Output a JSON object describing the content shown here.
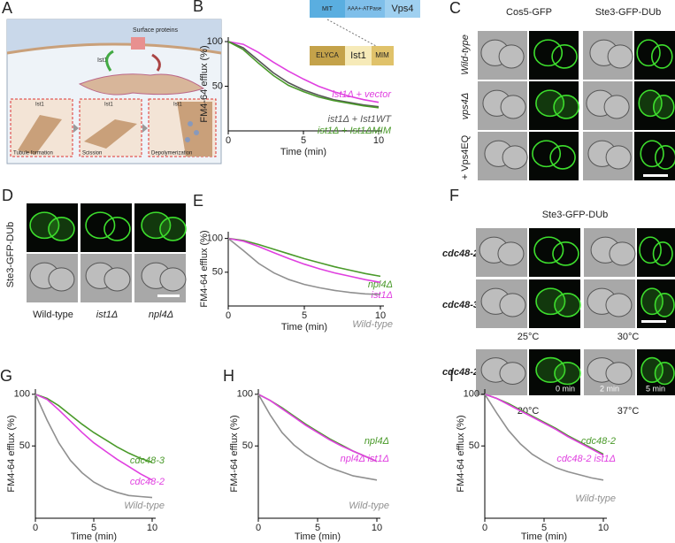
{
  "panel_a": {
    "label": "A",
    "surface": "Surface proteins",
    "ist1": "Ist1",
    "steps": [
      {
        "protein": "Ist1",
        "caption": "Tubule formation"
      },
      {
        "protein": "Ist1",
        "caption": "Scission"
      },
      {
        "protein": "Ist1",
        "caption": "Depolymerization"
      }
    ]
  },
  "domains": {
    "vps4": [
      "MIT",
      "AAA+-ATPase",
      "Vps4"
    ],
    "ist1": [
      "ELYCA",
      "Ist1",
      "MIM"
    ]
  },
  "panel_c": {
    "label": "C",
    "columns": [
      "Cos5-GFP",
      "Ste3-GFP-DUb"
    ],
    "rows": [
      "Wild-type",
      "vps4Δ",
      "+ Vps4EQ"
    ]
  },
  "panel_d": {
    "label": "D",
    "side": "Ste3-GFP-DUb",
    "columns": [
      "Wild-type",
      "ist1Δ",
      "npl4Δ"
    ]
  },
  "panel_f": {
    "label": "F",
    "header": "Ste3-GFP-DUb",
    "rows": [
      "cdc48-2",
      "cdc48-3",
      "cdc48-2"
    ],
    "temps": [
      "25°C",
      "30°C",
      "20°C",
      "37°C"
    ],
    "times": [
      "0 min",
      "2 min",
      "5 min"
    ]
  },
  "chart_data": [
    {
      "panel": "B",
      "type": "line",
      "xlabel": "Time (min)",
      "ylabel": "FM4-64 efflux (%)",
      "x": [
        0,
        1,
        2,
        3,
        4,
        5,
        6,
        7,
        8,
        9,
        10
      ],
      "xlim": [
        0,
        10
      ],
      "ylim": [
        0,
        105
      ],
      "xticks": [
        0,
        5,
        10
      ],
      "yticks": [
        50,
        100
      ],
      "series": [
        {
          "name": "ist1Δ + vector",
          "color": "#e040e0",
          "values": [
            100,
            97,
            88,
            77,
            67,
            58,
            50,
            44,
            39,
            35,
            32
          ]
        },
        {
          "name": "ist1Δ + Ist1WT",
          "color": "#555555",
          "values": [
            100,
            93,
            79,
            65,
            54,
            46,
            40,
            35,
            32,
            29,
            27
          ]
        },
        {
          "name": "ist1Δ + Ist1ΔMIM",
          "color": "#4a9a2a",
          "values": [
            100,
            91,
            76,
            62,
            51,
            44,
            38,
            34,
            31,
            28,
            26
          ]
        }
      ]
    },
    {
      "panel": "E",
      "type": "line",
      "xlabel": "Time (min)",
      "ylabel": "FM4-64 efflux (%)",
      "x": [
        0,
        1,
        2,
        3,
        4,
        5,
        6,
        7,
        8,
        9,
        10
      ],
      "xlim": [
        0,
        10
      ],
      "ylim": [
        0,
        110
      ],
      "xticks": [
        0,
        5,
        10
      ],
      "yticks": [
        50,
        100
      ],
      "series": [
        {
          "name": "npl4Δ",
          "color": "#4a9a2a",
          "values": [
            100,
            97,
            91,
            84,
            77,
            70,
            64,
            58,
            53,
            48,
            44
          ]
        },
        {
          "name": "ist1Δ",
          "color": "#e040e0",
          "values": [
            100,
            96,
            88,
            79,
            70,
            62,
            55,
            49,
            44,
            39,
            35
          ]
        },
        {
          "name": "Wild-type",
          "color": "#909090",
          "values": [
            100,
            82,
            63,
            49,
            39,
            32,
            27,
            23,
            20,
            18,
            17
          ]
        }
      ]
    },
    {
      "panel": "G",
      "type": "line",
      "xlabel": "Time (min)",
      "ylabel": "FM4-64 efflux (%)",
      "x": [
        0,
        1,
        2,
        3,
        4,
        5,
        6,
        7,
        8,
        9,
        10
      ],
      "xlim": [
        0,
        10
      ],
      "ylim": [
        -20,
        105
      ],
      "xticks": [
        0,
        5,
        10
      ],
      "yticks": [
        50,
        100
      ],
      "series": [
        {
          "name": "cdc48-3",
          "color": "#4a9a2a",
          "values": [
            100,
            96,
            89,
            80,
            71,
            63,
            56,
            49,
            43,
            38,
            34
          ]
        },
        {
          "name": "cdc48-2",
          "color": "#e040e0",
          "values": [
            100,
            95,
            85,
            74,
            63,
            53,
            45,
            37,
            30,
            23,
            17
          ]
        },
        {
          "name": "Wild-type",
          "color": "#909090",
          "values": [
            100,
            75,
            53,
            36,
            24,
            15,
            9,
            5,
            2,
            1,
            0
          ]
        }
      ]
    },
    {
      "panel": "H",
      "type": "line",
      "xlabel": "Time (min)",
      "ylabel": "FM4-64 efflux (%)",
      "x": [
        0,
        1,
        2,
        3,
        4,
        5,
        6,
        7,
        8,
        9,
        10
      ],
      "xlim": [
        0,
        10
      ],
      "ylim": [
        -20,
        105
      ],
      "xticks": [
        0,
        5,
        10
      ],
      "yticks": [
        50,
        100
      ],
      "series": [
        {
          "name": "npl4Δ",
          "color": "#4a9a2a",
          "values": [
            100,
            94,
            87,
            79,
            71,
            64,
            57,
            51,
            45,
            40,
            35
          ]
        },
        {
          "name": "npl4Δ ist1Δ",
          "color": "#e040e0",
          "values": [
            100,
            94,
            86,
            78,
            70,
            63,
            56,
            50,
            45,
            40,
            35
          ]
        },
        {
          "name": "Wild-type",
          "color": "#909090",
          "values": [
            100,
            80,
            63,
            51,
            42,
            35,
            29,
            25,
            21,
            19,
            17
          ]
        }
      ]
    },
    {
      "panel": "I",
      "type": "line",
      "xlabel": "Time (min)",
      "ylabel": "FM4-64 efflux (%)",
      "x": [
        0,
        1,
        2,
        3,
        4,
        5,
        6,
        7,
        8,
        9,
        10
      ],
      "xlim": [
        0,
        10
      ],
      "ylim": [
        -20,
        105
      ],
      "xticks": [
        0,
        5,
        10
      ],
      "yticks": [
        50,
        100
      ],
      "series": [
        {
          "name": "cdc48-2",
          "color": "#4a9a2a",
          "values": [
            100,
            96,
            91,
            85,
            79,
            73,
            67,
            60,
            54,
            48,
            42
          ]
        },
        {
          "name": "cdc48-2 ist1Δ",
          "color": "#e040e0",
          "values": [
            100,
            96,
            90,
            84,
            78,
            72,
            66,
            59,
            53,
            47,
            41
          ]
        },
        {
          "name": "Wild-type",
          "color": "#909090",
          "values": [
            100,
            82,
            65,
            52,
            42,
            35,
            29,
            25,
            22,
            19,
            17
          ]
        }
      ]
    }
  ]
}
